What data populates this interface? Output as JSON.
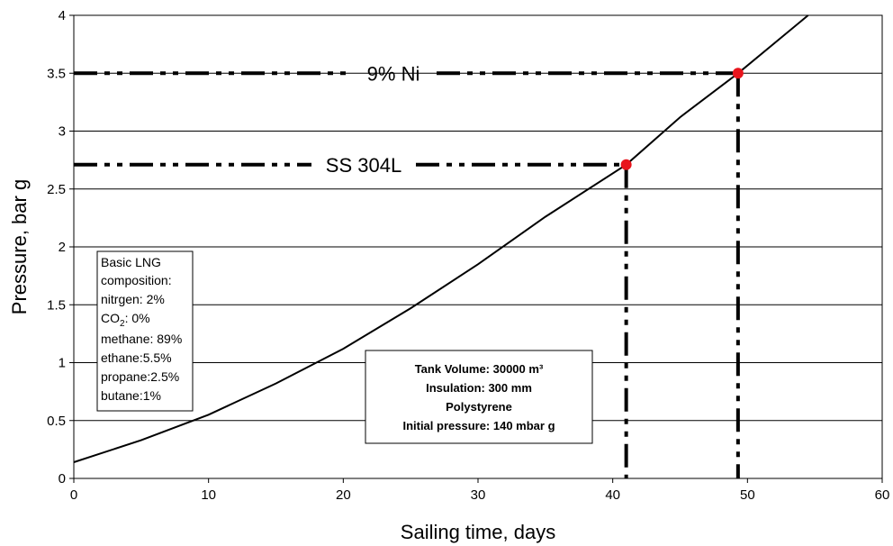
{
  "chart_data": {
    "type": "line",
    "xlabel": "Sailing time, days",
    "ylabel": "Pressure, bar g",
    "xlim": [
      0,
      60
    ],
    "ylim": [
      0,
      4
    ],
    "xticks": [
      "0",
      "10",
      "20",
      "30",
      "40",
      "50",
      "60"
    ],
    "yticks": [
      "0",
      "0.5",
      "1",
      "1.5",
      "2",
      "2.5",
      "3",
      "3.5",
      "4"
    ],
    "grid": "horizontal",
    "series": [
      {
        "x": [
          0,
          5,
          10,
          15,
          20,
          25,
          30,
          35,
          41,
          45,
          49.3,
          54.5
        ],
        "y": [
          0.14,
          0.33,
          0.55,
          0.82,
          1.12,
          1.47,
          1.85,
          2.26,
          2.71,
          3.12,
          3.5,
          4.0
        ]
      }
    ],
    "reference_lines": [
      {
        "label": "9% Ni",
        "y": 3.5,
        "x": 49.3
      },
      {
        "label": "SS 304L",
        "y": 2.71,
        "x": 41
      }
    ],
    "markers": [
      {
        "x": 41,
        "y": 2.71,
        "color": "#e8141c"
      },
      {
        "x": 49.3,
        "y": 3.5,
        "color": "#e8141c"
      }
    ],
    "annotations": {
      "composition": [
        "Basic LNG",
        "composition:",
        "nitrgen: 2%",
        "CO2: 0%",
        "methane: 89%",
        "ethane:5.5%",
        "propane:2.5%",
        "butane:1%"
      ],
      "tank": [
        "Tank Volume: 30000 m³",
        "Insulation: 300 mm",
        "Polystyrene",
        "Initial pressure: 140 mbar g"
      ]
    }
  }
}
